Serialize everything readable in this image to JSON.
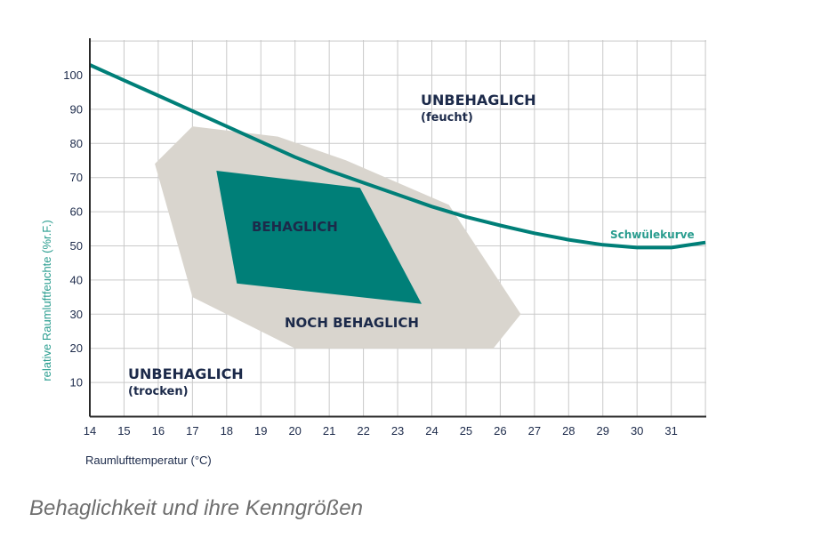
{
  "caption": "Behaglichkeit und ihre Kenngrößen",
  "colors": {
    "curve": "#007f78",
    "comfort": "#007f78",
    "near_comfort": "#d9d5ce",
    "grid": "#c9c9c9",
    "axis_text": "#1c2a4a",
    "ylabel_text": "#2a9d8f"
  },
  "chart_data": {
    "type": "area",
    "xlabel": "Raumlufttemperatur (°C)",
    "ylabel": "relative Raumluftfeuchte (%r.F.)",
    "xlim": [
      14,
      32
    ],
    "ylim": [
      0,
      110
    ],
    "x_ticks": [
      14,
      15,
      16,
      17,
      18,
      19,
      20,
      21,
      22,
      23,
      24,
      25,
      26,
      27,
      28,
      29,
      30,
      31
    ],
    "y_ticks": [
      10,
      20,
      30,
      40,
      50,
      60,
      70,
      80,
      90,
      100
    ],
    "grid": true,
    "regions": [
      {
        "name": "NOCH BEHAGLICH",
        "points": [
          [
            15.9,
            74
          ],
          [
            17,
            85
          ],
          [
            19.5,
            82
          ],
          [
            21.5,
            75
          ],
          [
            24.5,
            62
          ],
          [
            26.6,
            30
          ],
          [
            25.8,
            20
          ],
          [
            20,
            20
          ],
          [
            17,
            35
          ]
        ]
      },
      {
        "name": "BEHAGLICH",
        "points": [
          [
            17.7,
            72
          ],
          [
            21.9,
            67
          ],
          [
            23.7,
            33
          ],
          [
            18.3,
            39
          ]
        ]
      }
    ],
    "series": [
      {
        "name": "Schwülekurve",
        "x": [
          14,
          15,
          16,
          17,
          18,
          19,
          20,
          21,
          22,
          23,
          24,
          25,
          26,
          27,
          28,
          29,
          30,
          31,
          32
        ],
        "y": [
          103,
          98.5,
          94,
          89.5,
          85,
          80.5,
          76,
          72,
          68.5,
          65,
          61.5,
          58.5,
          56,
          53.7,
          51.8,
          50.3,
          49.5,
          49.5,
          51
        ]
      }
    ],
    "annotations": [
      {
        "text": "UNBEHAGLICH",
        "sub": "(feucht)"
      },
      {
        "text": "UNBEHAGLICH",
        "sub": "(trocken)"
      },
      {
        "text": "BEHAGLICH"
      },
      {
        "text": "NOCH BEHAGLICH"
      },
      {
        "text": "Schwülekurve"
      }
    ]
  }
}
